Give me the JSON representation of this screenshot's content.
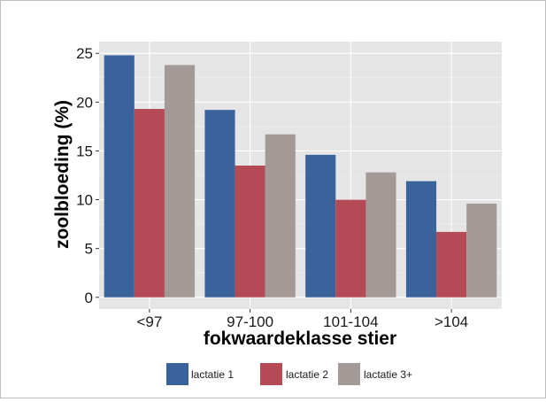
{
  "chart_data": {
    "type": "bar",
    "title": "",
    "xlabel": "fokwaardeklasse stier",
    "ylabel": "zoolbloeding (%)",
    "ylim": [
      -1.2,
      26.2
    ],
    "yticks": [
      0,
      5,
      10,
      15,
      20,
      25
    ],
    "categories": [
      "<97",
      "97-100",
      "101-104",
      ">104"
    ],
    "series": [
      {
        "name": "lactatie 1",
        "color": "#3a629b",
        "values": [
          24.8,
          19.2,
          14.6,
          11.9
        ]
      },
      {
        "name": "lactatie 2",
        "color": "#b44a55",
        "values": [
          19.3,
          13.5,
          10.0,
          6.7
        ]
      },
      {
        "name": "lactatie 3+",
        "color": "#a39997",
        "values": [
          23.8,
          16.7,
          12.8,
          9.6
        ]
      }
    ],
    "grid": true,
    "panel_background": "#e5e5e5",
    "legend_position": "bottom"
  }
}
